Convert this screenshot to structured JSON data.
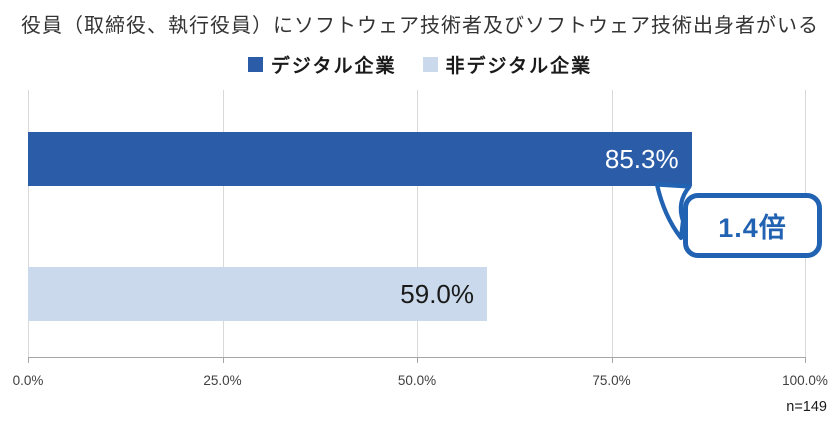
{
  "title": "役員（取締役、執行役員）にソフトウェア技術者及びソフトウェア技術出身者がいる",
  "legend": [
    {
      "label": "デジタル企業",
      "color": "#2A5CA8"
    },
    {
      "label": "非デジタル企業",
      "color": "#CAD9EB"
    }
  ],
  "chart_data": {
    "type": "bar",
    "orientation": "horizontal",
    "title": "役員（取締役、執行役員）にソフトウェア技術者及びソフトウェア技術出身者がいる",
    "categories": [
      "デジタル企業",
      "非デジタル企業"
    ],
    "values": [
      85.3,
      59.0
    ],
    "value_labels": [
      "85.3%",
      "59.0%"
    ],
    "series_colors": [
      "#2A5CA8",
      "#CAD9EB"
    ],
    "xlim": [
      0,
      100
    ],
    "x_ticks": [
      "0.0%",
      "25.0%",
      "50.0%",
      "75.0%",
      "100.0%"
    ],
    "grid": true,
    "legend_position": "top",
    "annotation": {
      "text": "1.4倍",
      "target": "デジタル企業"
    },
    "sample_note": "n=149"
  },
  "callout": {
    "label": "1.4倍",
    "color": "#2163b2"
  },
  "footnote": "n=149",
  "colors": {
    "bar_digital": "#2A5CA8",
    "bar_non_digital": "#CAD9EB",
    "callout_blue": "#2163b2",
    "gridline": "#d9d9d9",
    "axis_line": "#a6a6a6"
  }
}
